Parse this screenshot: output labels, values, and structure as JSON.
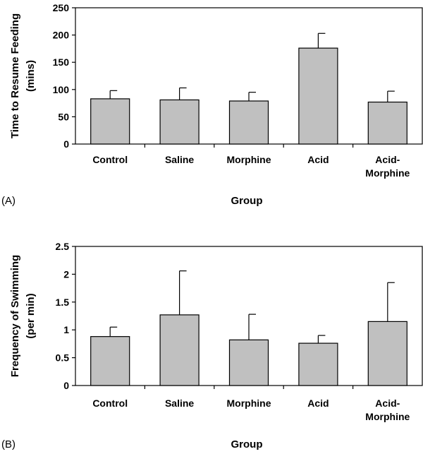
{
  "chart_data": [
    {
      "type": "bar",
      "panel_label": "(A)",
      "ylabel_lines": [
        "Time to Resume Feeding",
        "(mins)"
      ],
      "xlabel": "Group",
      "categories": [
        [
          "Control"
        ],
        [
          "Saline"
        ],
        [
          "Morphine"
        ],
        [
          "Acid"
        ],
        [
          "Acid-",
          "Morphine"
        ]
      ],
      "values": [
        83,
        81,
        79,
        176,
        77
      ],
      "error_plus": [
        15,
        22,
        16,
        27,
        20
      ],
      "ylim": [
        0,
        250
      ],
      "yticks": [
        "0",
        "50",
        "100",
        "150",
        "200",
        "250"
      ],
      "ytick_values": [
        0,
        50,
        100,
        150,
        200,
        250
      ],
      "grid": false,
      "bar_color": "#c0c0c0"
    },
    {
      "type": "bar",
      "panel_label": "(B)",
      "ylabel_lines": [
        "Frequency of Swimming",
        "(per min)"
      ],
      "xlabel": "Group",
      "categories": [
        [
          "Control"
        ],
        [
          "Saline"
        ],
        [
          "Morphine"
        ],
        [
          "Acid"
        ],
        [
          "Acid-",
          "Morphine"
        ]
      ],
      "values": [
        0.88,
        1.27,
        0.82,
        0.76,
        1.15
      ],
      "error_plus": [
        0.17,
        0.79,
        0.46,
        0.14,
        0.7
      ],
      "ylim": [
        0,
        2.5
      ],
      "yticks": [
        "0",
        "0.5",
        "1",
        "1.5",
        "2",
        "2.5"
      ],
      "ytick_values": [
        0,
        0.5,
        1,
        1.5,
        2,
        2.5
      ],
      "grid": false,
      "bar_color": "#c0c0c0"
    }
  ]
}
